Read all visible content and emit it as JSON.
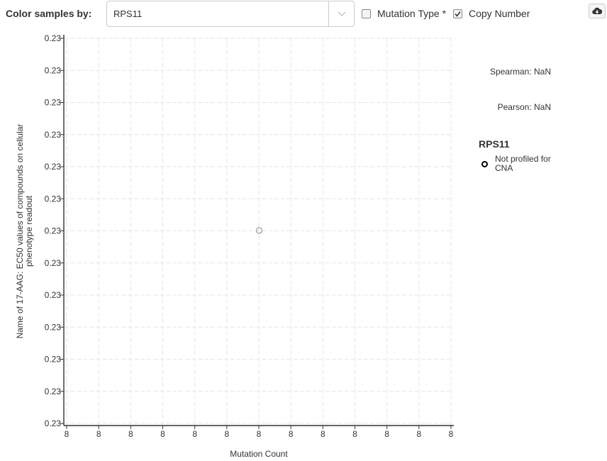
{
  "toolbar": {
    "color_label": "Color samples by:",
    "gene_select": {
      "value": "RPS11"
    },
    "mutation_type": {
      "label": "Mutation Type *",
      "checked": false
    },
    "copy_number": {
      "label": "Copy Number",
      "checked": true
    },
    "download_icon": "cloud-download-icon"
  },
  "stats": {
    "spearman": "Spearman: NaN",
    "pearson": "Pearson: NaN"
  },
  "legend": {
    "title": "RPS11",
    "items": [
      {
        "label": "Not profiled for CNA",
        "marker": "hollow-circle",
        "color": "#000000"
      }
    ]
  },
  "chart_data": {
    "type": "scatter",
    "xlabel": "Mutation Count",
    "ylabel": "Name of 17-AAG: EC50 values of compounds on cellular phenotype readout",
    "x_tick_labels": [
      "8",
      "8",
      "8",
      "8",
      "8",
      "8",
      "8",
      "8",
      "8",
      "8",
      "8",
      "8",
      "8"
    ],
    "y_tick_labels": [
      "0.23",
      "0.23",
      "0.23",
      "0.23",
      "0.23",
      "0.23",
      "0.23",
      "0.23",
      "0.23",
      "0.23",
      "0.23",
      "0.23",
      "0.23"
    ],
    "grid": true,
    "points": [
      {
        "x": 8,
        "y": 0.23,
        "color": "#aaaaaa"
      }
    ]
  }
}
